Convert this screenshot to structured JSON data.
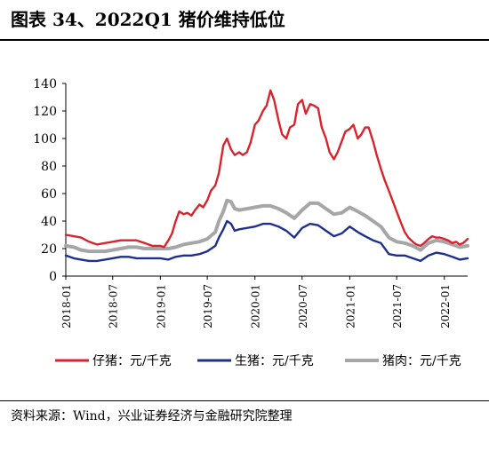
{
  "title": "图表 34、2022Q1 猪价维持低位",
  "source": "资料来源：Wind，兴业证券经济与金融研究院整理",
  "chart_data": {
    "type": "line",
    "title": "",
    "xlabel": "",
    "ylabel": "",
    "ylim": [
      0,
      140
    ],
    "yticks": [
      "0",
      "20",
      "40",
      "60",
      "80",
      "100",
      "120",
      "140"
    ],
    "xlim": [
      "2018-01",
      "2022-04"
    ],
    "xticks": [
      "2018-01",
      "2018-07",
      "2019-01",
      "2019-07",
      "2020-01",
      "2020-07",
      "2021-01",
      "2021-07",
      "2022-01"
    ],
    "grid": false,
    "legend": "bottom",
    "series": [
      {
        "name": "仔猪：元/千克",
        "color": "#d9232d",
        "points": [
          [
            "2018-01-01",
            30
          ],
          [
            "2018-02-01",
            29
          ],
          [
            "2018-03-01",
            28
          ],
          [
            "2018-04-01",
            25
          ],
          [
            "2018-05-01",
            23
          ],
          [
            "2018-06-01",
            24
          ],
          [
            "2018-07-01",
            25
          ],
          [
            "2018-08-01",
            26
          ],
          [
            "2018-09-01",
            26
          ],
          [
            "2018-10-01",
            26
          ],
          [
            "2018-11-01",
            24
          ],
          [
            "2018-12-01",
            22
          ],
          [
            "2019-01-01",
            22
          ],
          [
            "2019-01-15",
            21
          ],
          [
            "2019-02-01",
            26
          ],
          [
            "2019-02-15",
            31
          ],
          [
            "2019-03-01",
            40
          ],
          [
            "2019-03-15",
            47
          ],
          [
            "2019-04-01",
            45
          ],
          [
            "2019-04-15",
            46
          ],
          [
            "2019-05-01",
            44
          ],
          [
            "2019-05-15",
            48
          ],
          [
            "2019-06-01",
            52
          ],
          [
            "2019-06-15",
            50
          ],
          [
            "2019-07-01",
            55
          ],
          [
            "2019-07-15",
            62
          ],
          [
            "2019-08-01",
            66
          ],
          [
            "2019-08-15",
            75
          ],
          [
            "2019-09-01",
            95
          ],
          [
            "2019-09-15",
            100
          ],
          [
            "2019-10-01",
            92
          ],
          [
            "2019-10-15",
            88
          ],
          [
            "2019-11-01",
            90
          ],
          [
            "2019-11-15",
            88
          ],
          [
            "2019-12-01",
            90
          ],
          [
            "2019-12-15",
            97
          ],
          [
            "2020-01-01",
            110
          ],
          [
            "2020-01-15",
            113
          ],
          [
            "2020-02-01",
            120
          ],
          [
            "2020-02-15",
            124
          ],
          [
            "2020-03-01",
            135
          ],
          [
            "2020-03-15",
            128
          ],
          [
            "2020-04-01",
            113
          ],
          [
            "2020-04-15",
            103
          ],
          [
            "2020-05-01",
            100
          ],
          [
            "2020-05-15",
            108
          ],
          [
            "2020-06-01",
            110
          ],
          [
            "2020-06-15",
            125
          ],
          [
            "2020-07-01",
            128
          ],
          [
            "2020-07-15",
            118
          ],
          [
            "2020-08-01",
            125
          ],
          [
            "2020-08-15",
            124
          ],
          [
            "2020-09-01",
            122
          ],
          [
            "2020-09-15",
            108
          ],
          [
            "2020-10-01",
            100
          ],
          [
            "2020-10-15",
            90
          ],
          [
            "2020-11-01",
            85
          ],
          [
            "2020-11-15",
            90
          ],
          [
            "2020-12-01",
            98
          ],
          [
            "2020-12-15",
            105
          ],
          [
            "2021-01-01",
            107
          ],
          [
            "2021-01-15",
            110
          ],
          [
            "2021-02-01",
            100
          ],
          [
            "2021-02-15",
            103
          ],
          [
            "2021-03-01",
            108
          ],
          [
            "2021-03-15",
            108
          ],
          [
            "2021-04-01",
            98
          ],
          [
            "2021-04-15",
            88
          ],
          [
            "2021-05-01",
            78
          ],
          [
            "2021-05-15",
            70
          ],
          [
            "2021-06-01",
            62
          ],
          [
            "2021-06-15",
            55
          ],
          [
            "2021-07-01",
            47
          ],
          [
            "2021-07-15",
            40
          ],
          [
            "2021-08-01",
            32
          ],
          [
            "2021-08-15",
            28
          ],
          [
            "2021-09-01",
            25
          ],
          [
            "2021-09-15",
            23
          ],
          [
            "2021-10-01",
            22
          ],
          [
            "2021-10-15",
            24
          ],
          [
            "2021-11-01",
            27
          ],
          [
            "2021-11-15",
            29
          ],
          [
            "2021-12-01",
            28
          ],
          [
            "2021-12-15",
            28
          ],
          [
            "2022-01-01",
            27
          ],
          [
            "2022-01-15",
            26
          ],
          [
            "2022-02-01",
            24
          ],
          [
            "2022-02-15",
            25
          ],
          [
            "2022-03-01",
            23
          ],
          [
            "2022-03-15",
            24
          ],
          [
            "2022-04-01",
            27
          ]
        ]
      },
      {
        "name": "生猪：元/千克",
        "color": "#1f2f8e",
        "points": [
          [
            "2018-01-01",
            15
          ],
          [
            "2018-02-01",
            13
          ],
          [
            "2018-03-01",
            12
          ],
          [
            "2018-04-01",
            11
          ],
          [
            "2018-05-01",
            11
          ],
          [
            "2018-06-01",
            12
          ],
          [
            "2018-07-01",
            13
          ],
          [
            "2018-08-01",
            14
          ],
          [
            "2018-09-01",
            14
          ],
          [
            "2018-10-01",
            13
          ],
          [
            "2018-11-01",
            13
          ],
          [
            "2018-12-01",
            13
          ],
          [
            "2019-01-01",
            13
          ],
          [
            "2019-02-01",
            12
          ],
          [
            "2019-03-01",
            14
          ],
          [
            "2019-04-01",
            15
          ],
          [
            "2019-05-01",
            15
          ],
          [
            "2019-06-01",
            16
          ],
          [
            "2019-07-01",
            18
          ],
          [
            "2019-08-01",
            22
          ],
          [
            "2019-08-15",
            28
          ],
          [
            "2019-09-01",
            34
          ],
          [
            "2019-09-15",
            40
          ],
          [
            "2019-10-01",
            38
          ],
          [
            "2019-10-15",
            33
          ],
          [
            "2019-11-01",
            34
          ],
          [
            "2019-12-01",
            35
          ],
          [
            "2020-01-01",
            36
          ],
          [
            "2020-02-01",
            38
          ],
          [
            "2020-03-01",
            38
          ],
          [
            "2020-04-01",
            36
          ],
          [
            "2020-05-01",
            33
          ],
          [
            "2020-06-01",
            28
          ],
          [
            "2020-07-01",
            35
          ],
          [
            "2020-08-01",
            38
          ],
          [
            "2020-09-01",
            37
          ],
          [
            "2020-10-01",
            33
          ],
          [
            "2020-11-01",
            29
          ],
          [
            "2020-12-01",
            31
          ],
          [
            "2021-01-01",
            36
          ],
          [
            "2021-02-01",
            32
          ],
          [
            "2021-03-01",
            29
          ],
          [
            "2021-04-01",
            26
          ],
          [
            "2021-05-01",
            24
          ],
          [
            "2021-06-01",
            16
          ],
          [
            "2021-07-01",
            15
          ],
          [
            "2021-08-01",
            15
          ],
          [
            "2021-09-01",
            13
          ],
          [
            "2021-10-01",
            11
          ],
          [
            "2021-11-01",
            15
          ],
          [
            "2021-12-01",
            17
          ],
          [
            "2022-01-01",
            16
          ],
          [
            "2022-02-01",
            14
          ],
          [
            "2022-03-01",
            12
          ],
          [
            "2022-04-01",
            13
          ]
        ]
      },
      {
        "name": "猪肉：元/千克",
        "color": "#a6a6a6",
        "points": [
          [
            "2018-01-01",
            22
          ],
          [
            "2018-02-01",
            21
          ],
          [
            "2018-03-01",
            19
          ],
          [
            "2018-04-01",
            18
          ],
          [
            "2018-05-01",
            18
          ],
          [
            "2018-06-01",
            18
          ],
          [
            "2018-07-01",
            19
          ],
          [
            "2018-08-01",
            20
          ],
          [
            "2018-09-01",
            21
          ],
          [
            "2018-10-01",
            21
          ],
          [
            "2018-11-01",
            20
          ],
          [
            "2018-12-01",
            20
          ],
          [
            "2019-01-01",
            20
          ],
          [
            "2019-02-01",
            20
          ],
          [
            "2019-03-01",
            21
          ],
          [
            "2019-04-01",
            23
          ],
          [
            "2019-05-01",
            24
          ],
          [
            "2019-06-01",
            25
          ],
          [
            "2019-07-01",
            27
          ],
          [
            "2019-08-01",
            32
          ],
          [
            "2019-08-15",
            40
          ],
          [
            "2019-09-01",
            47
          ],
          [
            "2019-09-15",
            55
          ],
          [
            "2019-10-01",
            54
          ],
          [
            "2019-10-15",
            49
          ],
          [
            "2019-11-01",
            48
          ],
          [
            "2019-12-01",
            49
          ],
          [
            "2020-01-01",
            50
          ],
          [
            "2020-02-01",
            51
          ],
          [
            "2020-03-01",
            51
          ],
          [
            "2020-04-01",
            49
          ],
          [
            "2020-05-01",
            46
          ],
          [
            "2020-06-01",
            42
          ],
          [
            "2020-07-01",
            48
          ],
          [
            "2020-08-01",
            53
          ],
          [
            "2020-09-01",
            53
          ],
          [
            "2020-10-01",
            49
          ],
          [
            "2020-11-01",
            45
          ],
          [
            "2020-12-01",
            46
          ],
          [
            "2021-01-01",
            50
          ],
          [
            "2021-02-01",
            47
          ],
          [
            "2021-03-01",
            44
          ],
          [
            "2021-04-01",
            40
          ],
          [
            "2021-05-01",
            36
          ],
          [
            "2021-06-01",
            28
          ],
          [
            "2021-07-01",
            25
          ],
          [
            "2021-08-01",
            24
          ],
          [
            "2021-09-01",
            22
          ],
          [
            "2021-10-01",
            19
          ],
          [
            "2021-11-01",
            24
          ],
          [
            "2021-12-01",
            26
          ],
          [
            "2022-01-01",
            25
          ],
          [
            "2022-02-01",
            23
          ],
          [
            "2022-03-01",
            21
          ],
          [
            "2022-04-01",
            22
          ]
        ]
      }
    ]
  }
}
